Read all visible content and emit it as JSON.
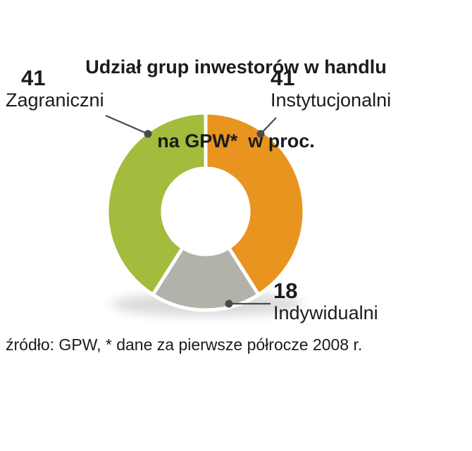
{
  "title": {
    "line1": "Udział grup inwestorów w handlu",
    "line2": "na GPW*  w proc."
  },
  "source": "źródło: GPW, * dane za pierwsze półrocze 2008 r.",
  "colors": {
    "text": "#1b1b1f",
    "leader": "#4a4a4b",
    "shadow": "#a0a0a0",
    "background": "#ffffff"
  },
  "chart_data": {
    "type": "pie",
    "subtype": "donut",
    "title": "Udział grup inwestorów w handlu na GPW* w proc.",
    "unit": "proc.",
    "direction": "clockwise",
    "start_angle_deg": 0,
    "total": 100,
    "segments": [
      {
        "id": "instytucjonalni",
        "label": "Instytucjonalni",
        "value": 41,
        "color": "#E8941E"
      },
      {
        "id": "indywidualni",
        "label": "Indywidualni",
        "value": 18,
        "color": "#B2B2AA"
      },
      {
        "id": "zagraniczni",
        "label": "Zagraniczni",
        "value": 41,
        "color": "#A3BC3D"
      }
    ]
  }
}
